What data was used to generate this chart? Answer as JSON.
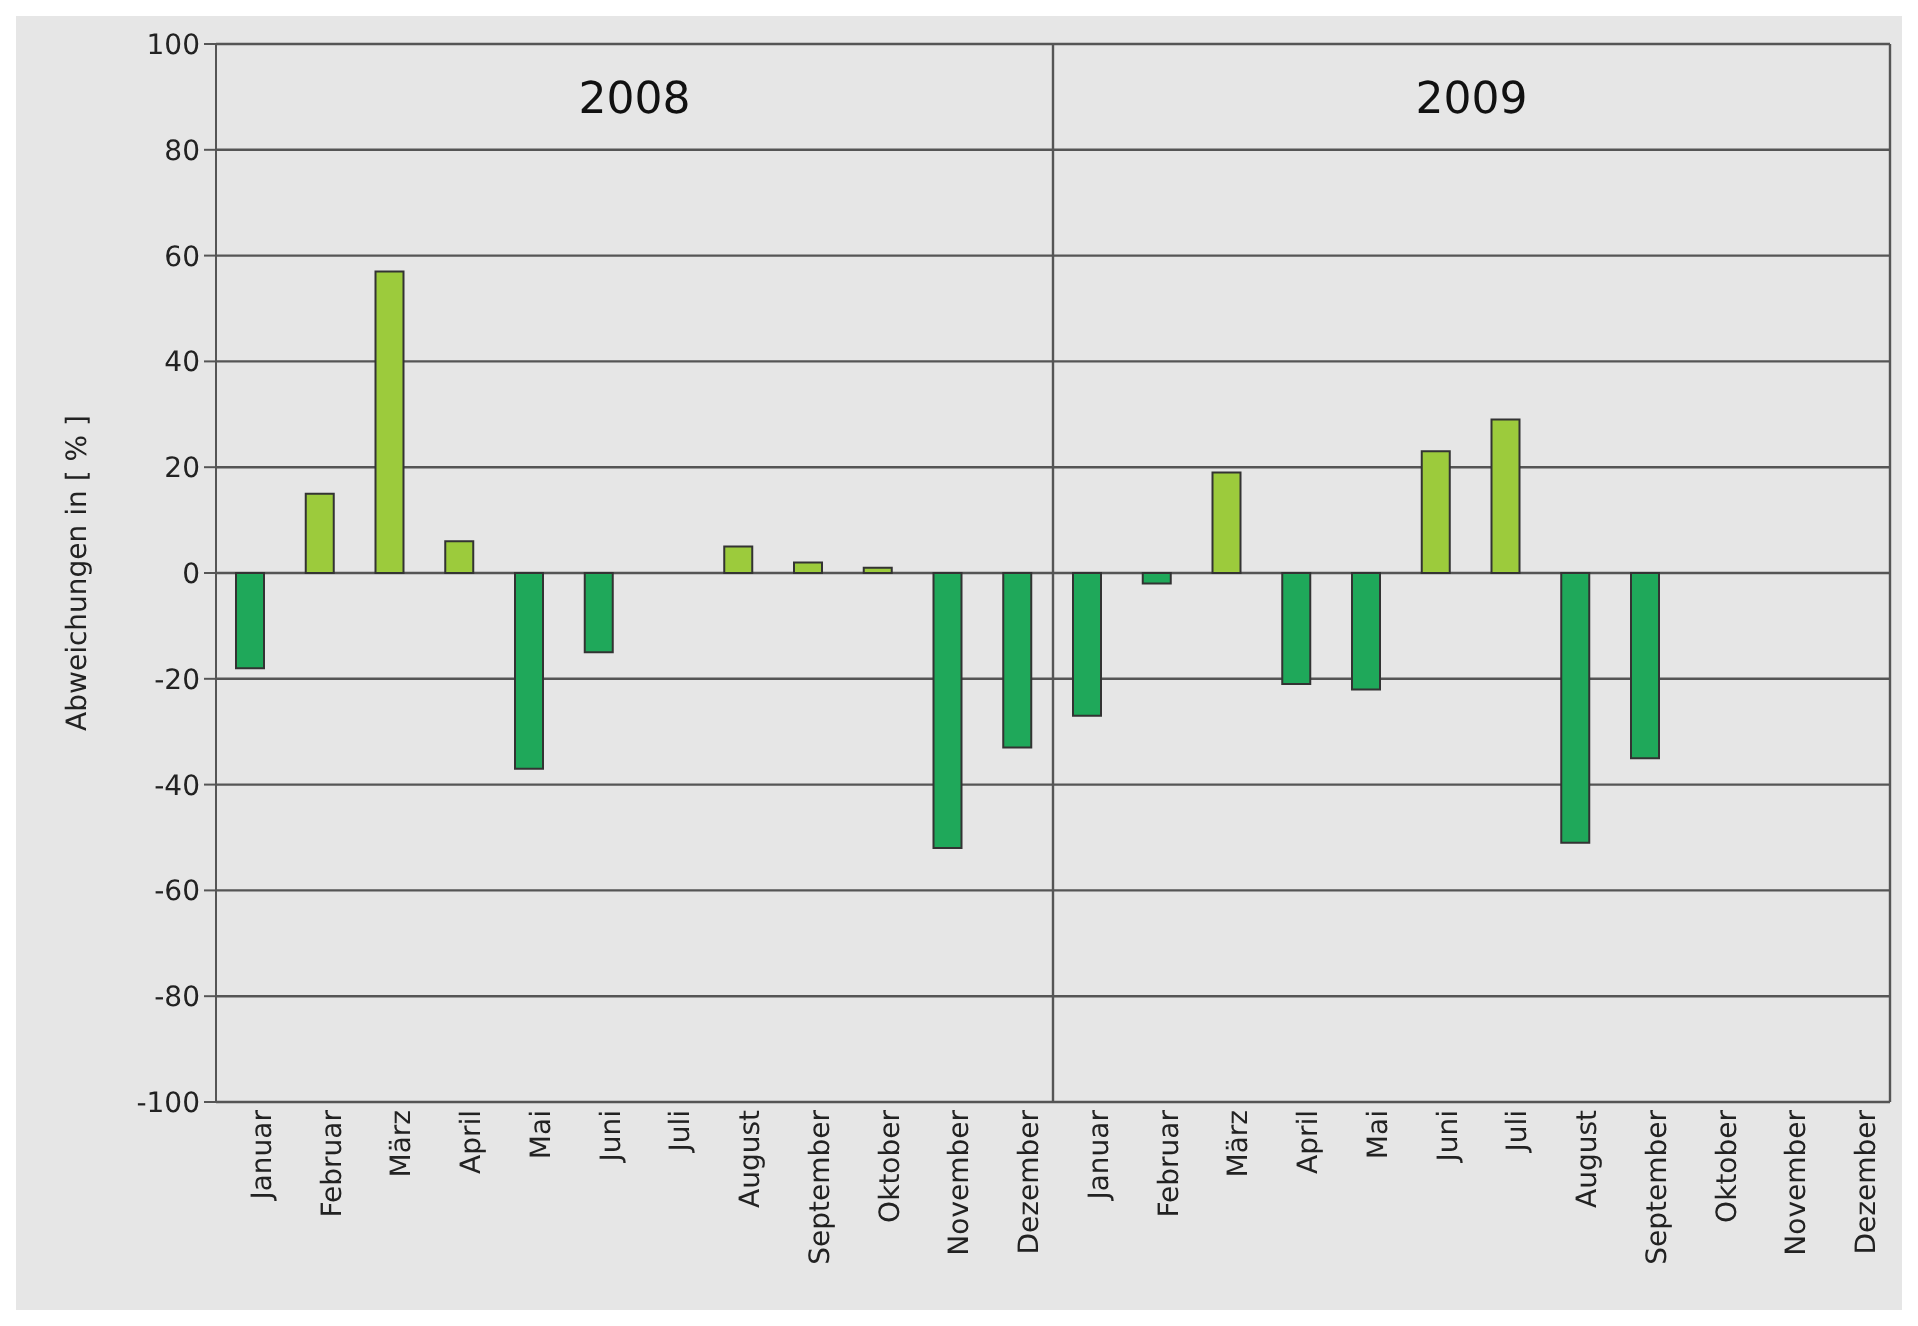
{
  "chart_data": {
    "type": "bar",
    "ylabel": "Abweichungen in [ % ]",
    "categories": [
      "Januar",
      "Februar",
      "März",
      "April",
      "Mai",
      "Juni",
      "Juli",
      "August",
      "September",
      "Oktober",
      "November",
      "Dezember",
      "Januar",
      "Februar",
      "März",
      "April",
      "Mai",
      "Juni",
      "Juli",
      "August",
      "September",
      "Oktober",
      "November",
      "Dezember"
    ],
    "values": [
      -18,
      15,
      57,
      6,
      -37,
      -15,
      null,
      5,
      2,
      1,
      -52,
      -33,
      -27,
      -2,
      19,
      -21,
      -22,
      23,
      29,
      -51,
      -35,
      null,
      null,
      null
    ],
    "colors": [
      "#1fa85a",
      "#9ccb3c",
      "#9ccb3c",
      "#9ccb3c",
      "#1fa85a",
      "#1fa85a",
      "#1fa85a",
      "#9ccb3c",
      "#9ccb3c",
      "#9ccb3c",
      "#1fa85a",
      "#1fa85a",
      "#1fa85a",
      "#1fa85a",
      "#9ccb3c",
      "#1fa85a",
      "#1fa85a",
      "#9ccb3c",
      "#9ccb3c",
      "#1fa85a",
      "#1fa85a",
      "#1fa85a",
      "#1fa85a",
      "#1fa85a"
    ],
    "annotations": [
      "2008",
      "2009"
    ],
    "ylim": [
      -100,
      100
    ],
    "yticks": [
      -100,
      -80,
      -60,
      -40,
      -20,
      0,
      20,
      40,
      60,
      80,
      100
    ],
    "grid": "y",
    "legend": false
  }
}
